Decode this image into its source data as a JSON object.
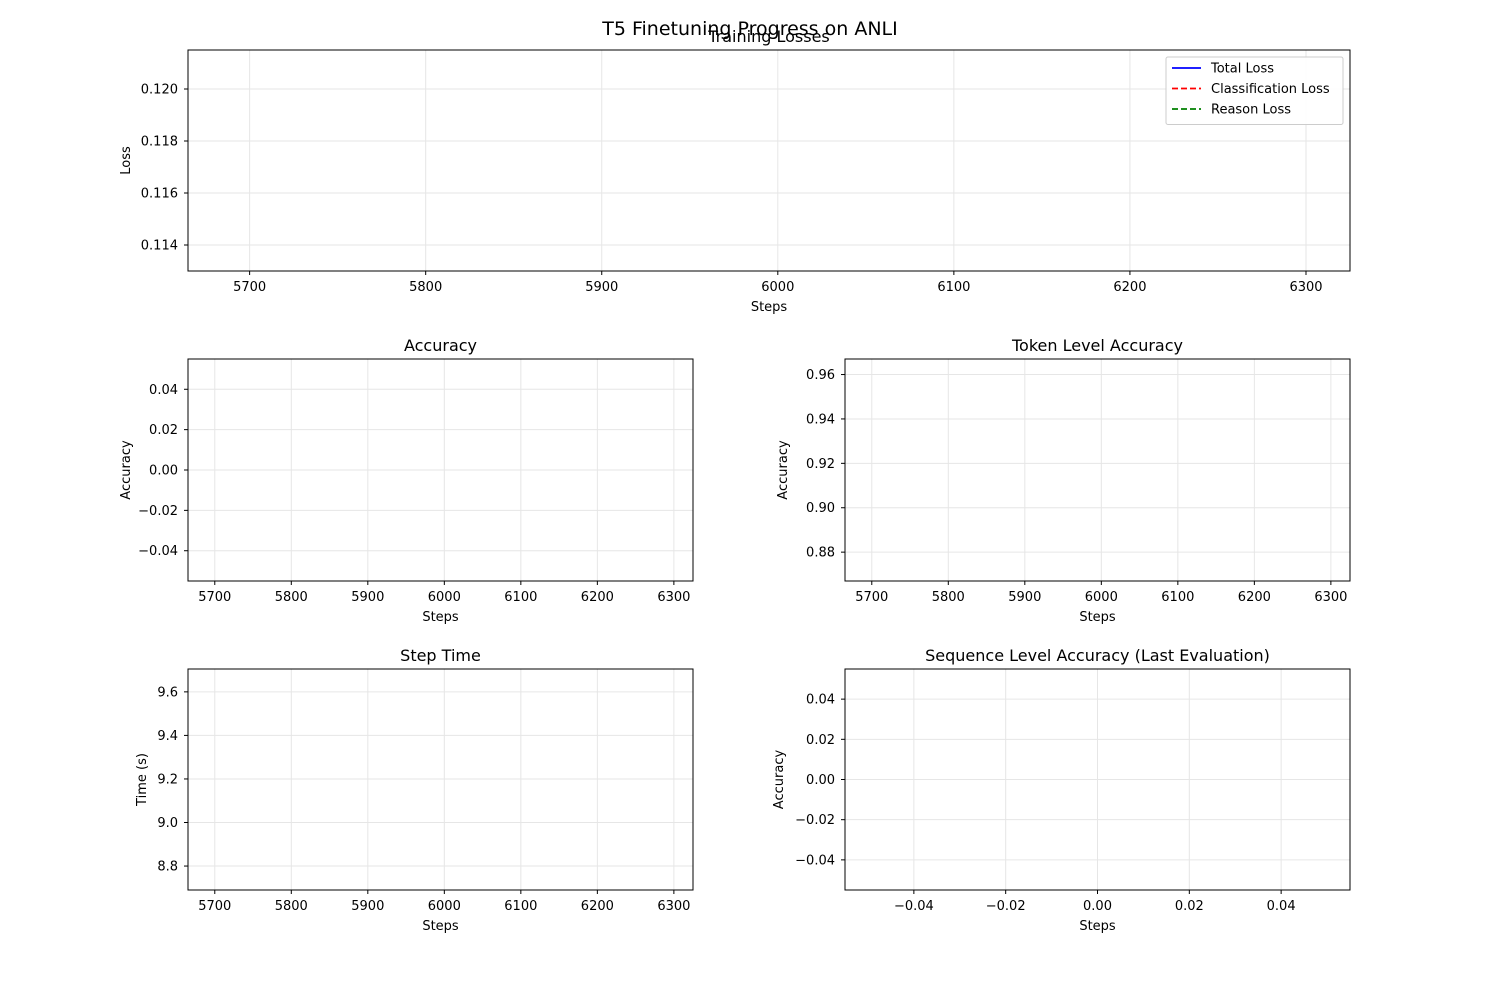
{
  "figure": {
    "title": "T5 Finetuning Progress on ANLI"
  },
  "chart_data": [
    {
      "type": "line",
      "title": "Training Losses",
      "xlabel": "Steps",
      "ylabel": "Loss",
      "xlim": [
        5665,
        5325
      ],
      "ylim": [
        0.113,
        0.1215
      ],
      "xticks": [
        5700,
        5800,
        5900,
        6000,
        6100,
        6200,
        6300
      ],
      "yticks": [
        0.114,
        0.116,
        0.118,
        0.12
      ],
      "ytick_decimals": 3,
      "grid": true,
      "legend": {
        "placement": "top-right",
        "entries": [
          {
            "label": "Total Loss",
            "color": "#0000ff",
            "dash": "solid"
          },
          {
            "label": "Classification Loss",
            "color": "#ff0000",
            "dash": "dashed"
          },
          {
            "label": "Reason Loss",
            "color": "#008000",
            "dash": "dashed"
          }
        ]
      },
      "series": [
        {
          "name": "Total Loss",
          "color": "#0000ff",
          "x": [],
          "y": []
        },
        {
          "name": "Classification Loss",
          "color": "#ff0000",
          "x": [],
          "y": []
        },
        {
          "name": "Reason Loss",
          "color": "#008000",
          "x": [],
          "y": []
        }
      ]
    },
    {
      "type": "line",
      "title": "Accuracy",
      "xlabel": "Steps",
      "ylabel": "Accuracy",
      "xlim": [
        5665,
        6325
      ],
      "ylim": [
        -0.055,
        0.055
      ],
      "xticks": [
        5700,
        5800,
        5900,
        6000,
        6100,
        6200,
        6300
      ],
      "yticks": [
        -0.04,
        -0.02,
        0.0,
        0.02,
        0.04
      ],
      "ytick_decimals": 2,
      "grid": true,
      "series": []
    },
    {
      "type": "line",
      "title": "Token Level Accuracy",
      "xlabel": "Steps",
      "ylabel": "Accuracy",
      "xlim": [
        5665,
        6325
      ],
      "ylim": [
        0.867,
        0.967
      ],
      "xticks": [
        5700,
        5800,
        5900,
        6000,
        6100,
        6200,
        6300
      ],
      "yticks": [
        0.88,
        0.9,
        0.92,
        0.94,
        0.96
      ],
      "ytick_decimals": 2,
      "grid": true,
      "series": []
    },
    {
      "type": "line",
      "title": "Step Time",
      "xlabel": "Steps",
      "ylabel": "Time (s)",
      "xlim": [
        5665,
        6325
      ],
      "ylim": [
        8.69,
        9.705
      ],
      "xticks": [
        5700,
        5800,
        5900,
        6000,
        6100,
        6200,
        6300
      ],
      "yticks": [
        8.8,
        9.0,
        9.2,
        9.4,
        9.6
      ],
      "ytick_decimals": 1,
      "grid": true,
      "series": []
    },
    {
      "type": "line",
      "title": "Sequence Level Accuracy (Last Evaluation)",
      "xlabel": "Steps",
      "ylabel": "Accuracy",
      "xlim": [
        -0.055,
        0.055
      ],
      "ylim": [
        -0.055,
        0.055
      ],
      "xticks": [
        -0.04,
        -0.02,
        0.0,
        0.02,
        0.04
      ],
      "xtick_decimals": 2,
      "yticks": [
        -0.04,
        -0.02,
        0.0,
        0.02,
        0.04
      ],
      "ytick_decimals": 2,
      "grid": true,
      "series": []
    }
  ]
}
